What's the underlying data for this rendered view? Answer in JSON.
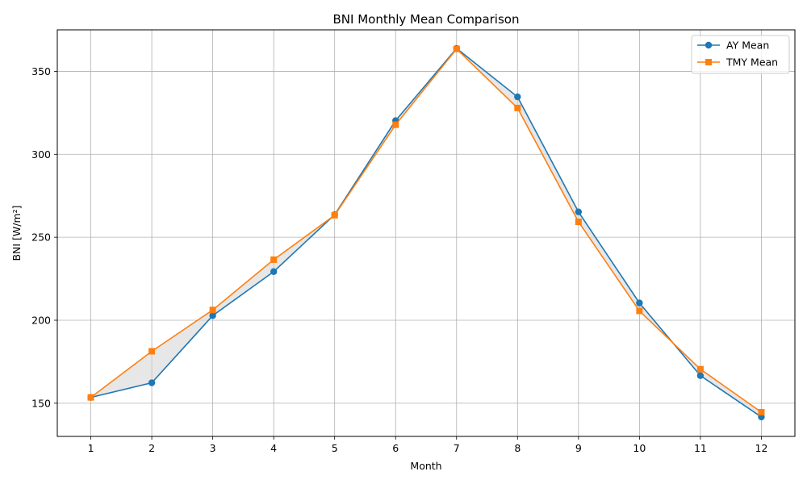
{
  "chart_data": {
    "type": "line",
    "title": "BNI Monthly Mean Comparison",
    "xlabel": "Month",
    "ylabel": "BNI [W/m²]",
    "x": [
      1,
      2,
      3,
      4,
      5,
      6,
      7,
      8,
      9,
      10,
      11,
      12
    ],
    "xlim": [
      0.45,
      12.55
    ],
    "ylim": [
      130,
      375
    ],
    "yticks": [
      150,
      200,
      250,
      300,
      350
    ],
    "grid": true,
    "legend_position": "top-right",
    "fill_between": true,
    "fill_color": "#d3d3d3",
    "series": [
      {
        "name": "AY Mean",
        "color": "#1f77b4",
        "marker": "circle",
        "values": [
          153.5,
          162.3,
          202.8,
          229.3,
          263.6,
          320.3,
          363.8,
          334.6,
          265.3,
          210.4,
          166.6,
          141.7
        ]
      },
      {
        "name": "TMY Mean",
        "color": "#ff7f0e",
        "marker": "square",
        "values": [
          153.5,
          181.3,
          206.2,
          236.5,
          263.3,
          317.8,
          363.5,
          327.9,
          259.3,
          205.6,
          170.5,
          144.6
        ]
      }
    ]
  }
}
